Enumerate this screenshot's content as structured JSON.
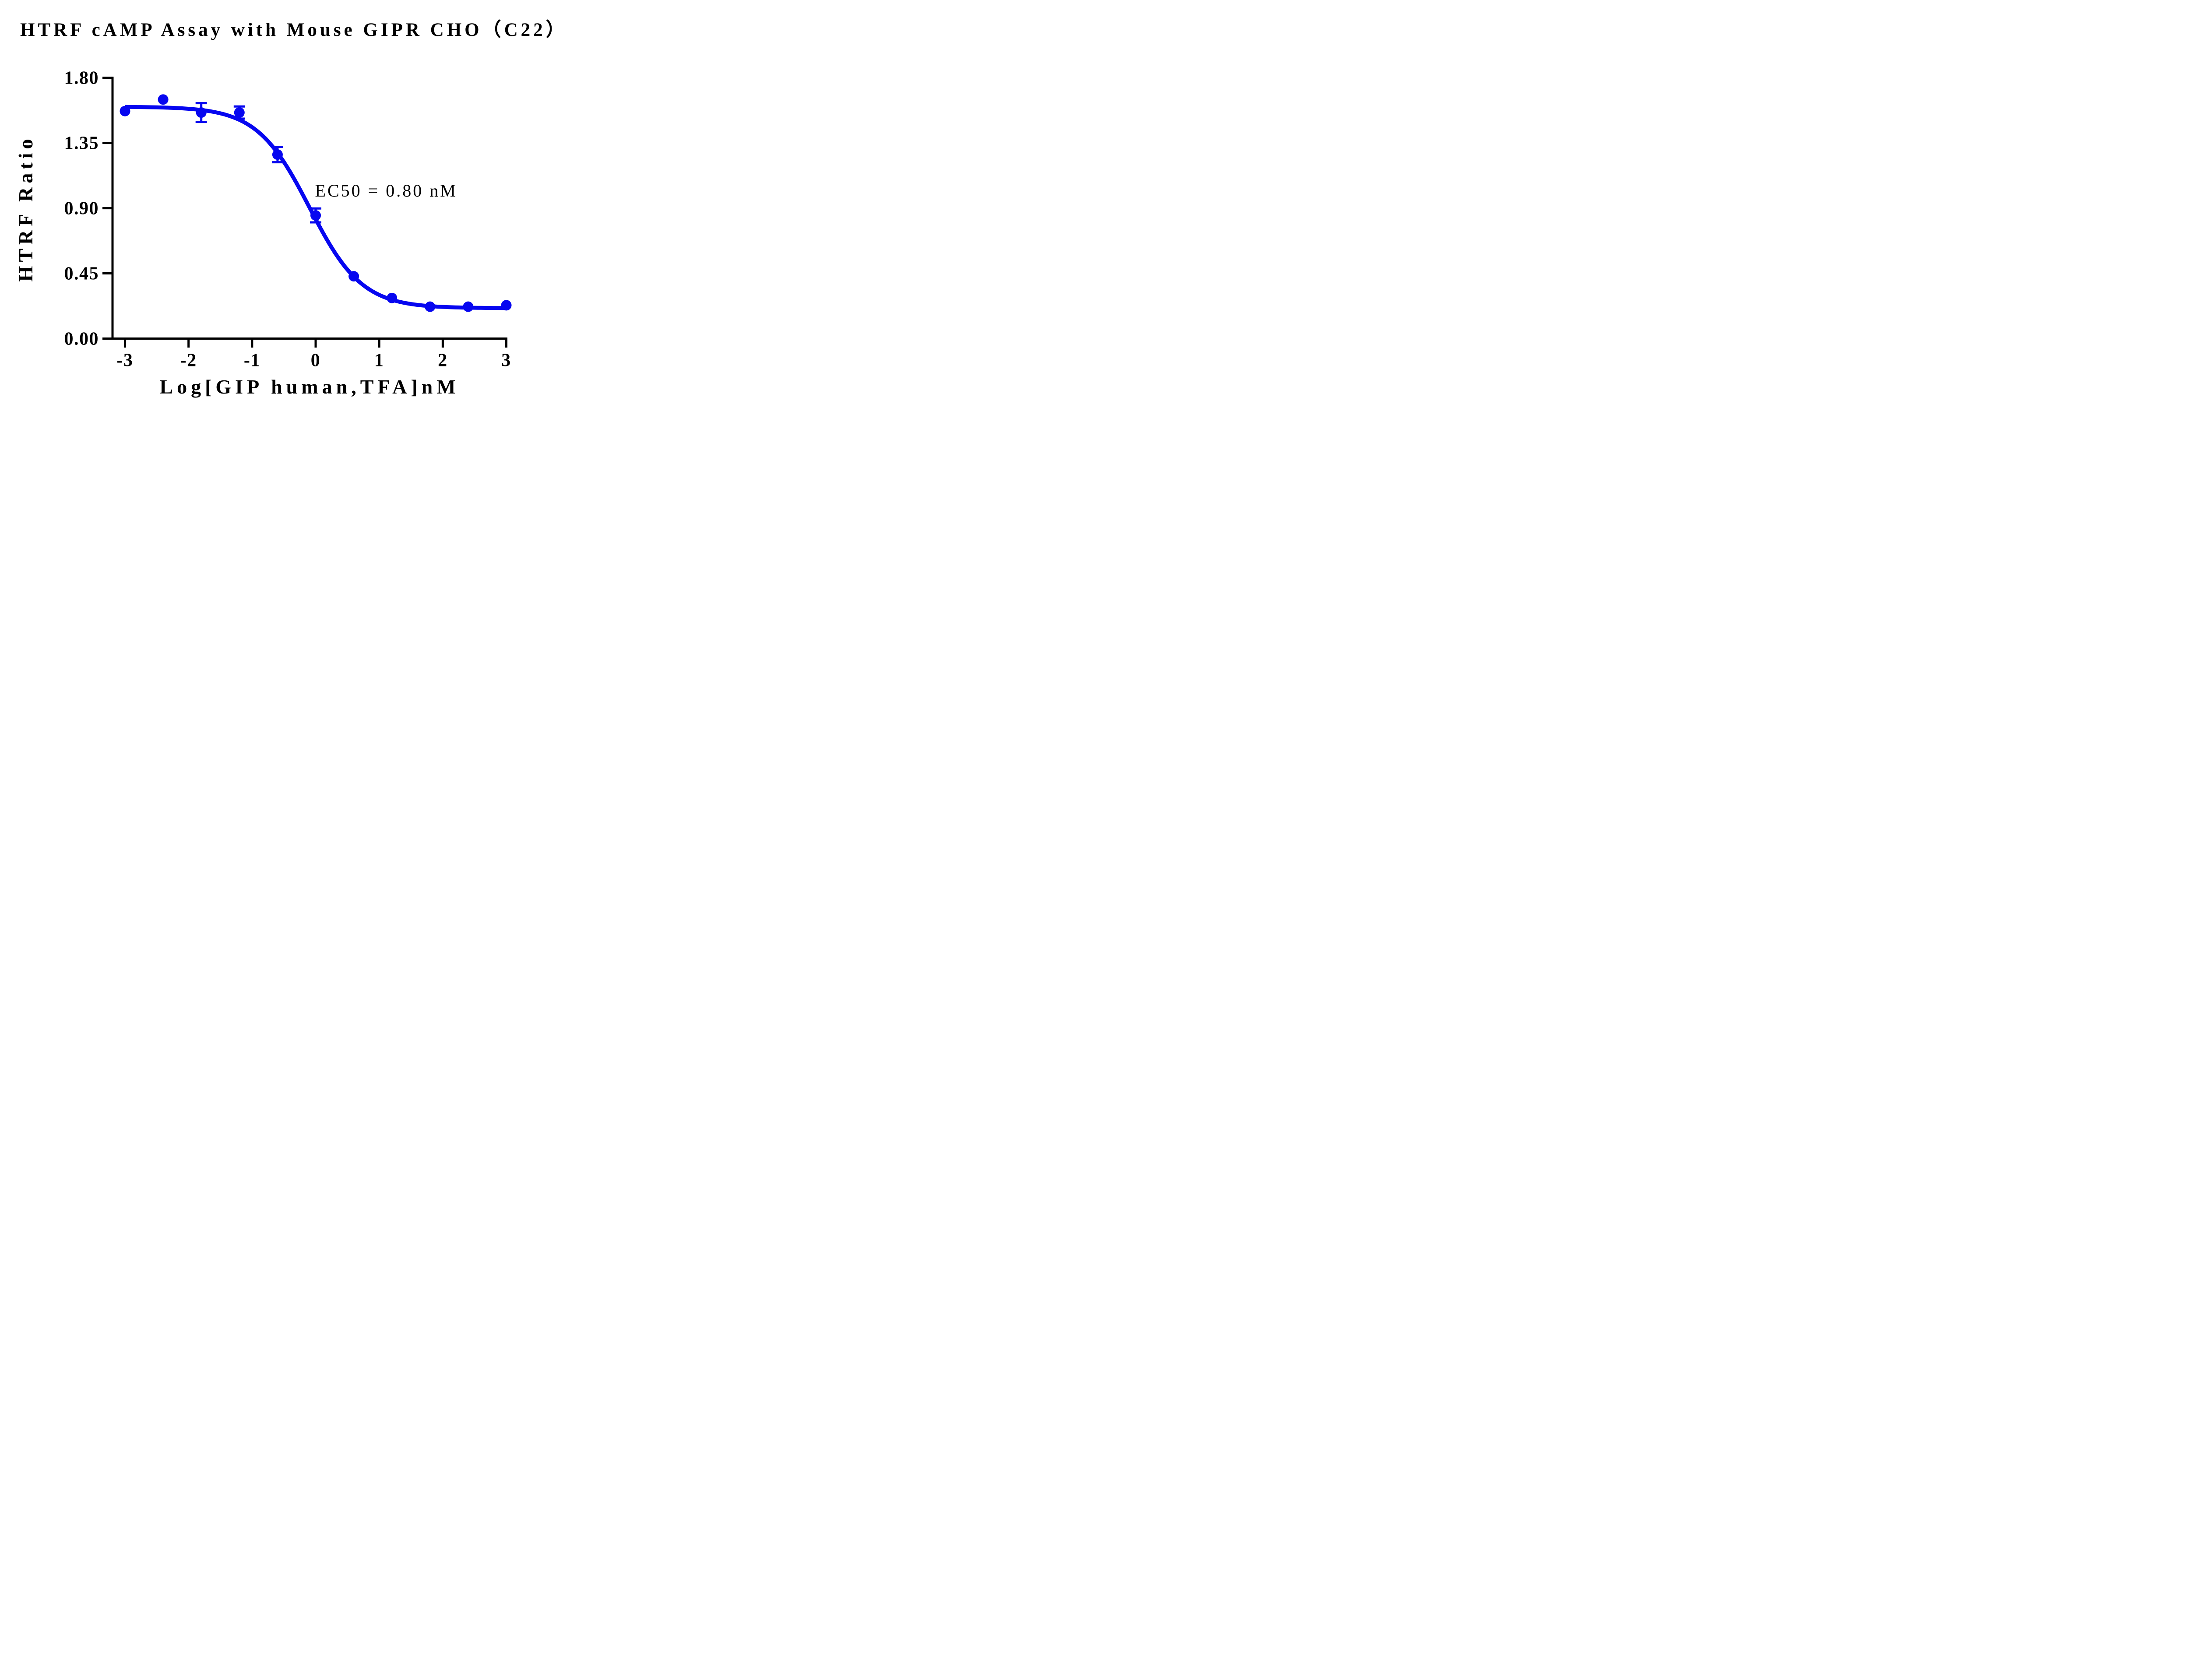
{
  "page": {
    "background": "#ffffff"
  },
  "chart_data": {
    "type": "scatter",
    "title": "HTRF cAMP Assay with Mouse GIPR CHO（C22）",
    "xlabel": "Log[GIP human,TFA]nM",
    "ylabel": "HTRF Ratio",
    "annotation": {
      "text": "EC50 = 0.80 nM",
      "anchor_x": -0.01,
      "anchor_y": 0.98
    },
    "ec50_nM": 0.8,
    "series_color": "#0606f0",
    "axis_color": "#000000",
    "background_color": "#ffffff",
    "grid": false,
    "legend_position": "none",
    "xlim": [
      -3.2,
      3.0
    ],
    "ylim": [
      0.0,
      1.8
    ],
    "x_ticks": [
      -3,
      -2,
      -1,
      0,
      1,
      2,
      3
    ],
    "x_tick_labels": [
      "-3",
      "-2",
      "-1",
      "0",
      "1",
      "2",
      "3"
    ],
    "y_ticks": [
      0.0,
      0.45,
      0.9,
      1.35,
      1.8
    ],
    "y_tick_labels": [
      "0.00",
      "0.45",
      "0.90",
      "1.35",
      "1.80"
    ],
    "points": [
      {
        "x": -3.0,
        "y": 1.57,
        "yerr": 0
      },
      {
        "x": -2.4,
        "y": 1.65,
        "yerr": 0
      },
      {
        "x": -1.8,
        "y": 1.56,
        "yerr": 0.065
      },
      {
        "x": -1.2,
        "y": 1.56,
        "yerr": 0.042
      },
      {
        "x": -0.6,
        "y": 1.27,
        "yerr": 0.053
      },
      {
        "x": 0.0,
        "y": 0.85,
        "yerr": 0.048
      },
      {
        "x": 0.6,
        "y": 0.43,
        "yerr": 0
      },
      {
        "x": 1.2,
        "y": 0.28,
        "yerr": 0
      },
      {
        "x": 1.8,
        "y": 0.22,
        "yerr": 0
      },
      {
        "x": 2.4,
        "y": 0.22,
        "yerr": 0
      },
      {
        "x": 3.0,
        "y": 0.23,
        "yerr": 0
      }
    ],
    "fit_curve": {
      "model": "4PL",
      "top": 1.6,
      "bottom": 0.21,
      "logEC50": -0.097,
      "hillslope": -1.05,
      "x_start": -3.0,
      "x_end": 3.0
    }
  }
}
